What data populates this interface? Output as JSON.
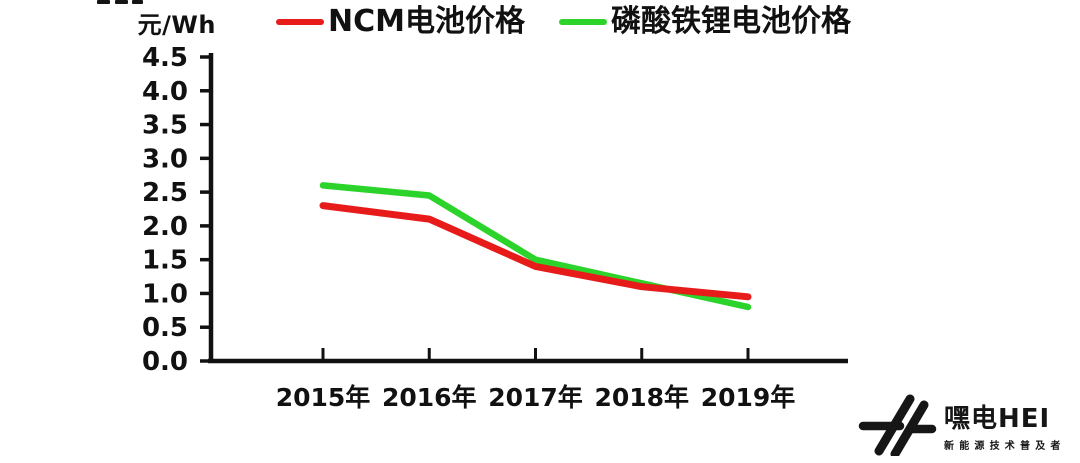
{
  "unit_label": "元/Wh",
  "legend": [
    {
      "label": "NCM电池价格",
      "color": "#e81b1b"
    },
    {
      "label": "磷酸铁锂电池价格",
      "color": "#2cd32a"
    }
  ],
  "chart_data": {
    "type": "line",
    "categories": [
      "2015年",
      "2016年",
      "2017年",
      "2018年",
      "2019年"
    ],
    "series": [
      {
        "name": "NCM电池价格",
        "color": "#e81b1b",
        "values": [
          2.3,
          2.1,
          1.4,
          1.1,
          0.95
        ]
      },
      {
        "name": "磷酸铁锂电池价格",
        "color": "#2cd32a",
        "values": [
          2.6,
          2.45,
          1.5,
          1.15,
          0.8
        ]
      }
    ],
    "title": "",
    "xlabel": "",
    "ylabel": "元/Wh",
    "ylim": [
      0.0,
      4.5
    ],
    "ytick_step": 0.5,
    "ytick_format_decimals": 1,
    "grid": false,
    "legend_position": "top"
  },
  "watermark": {
    "brand": "嘿电HEI",
    "tagline": "新能源技术普及者"
  }
}
